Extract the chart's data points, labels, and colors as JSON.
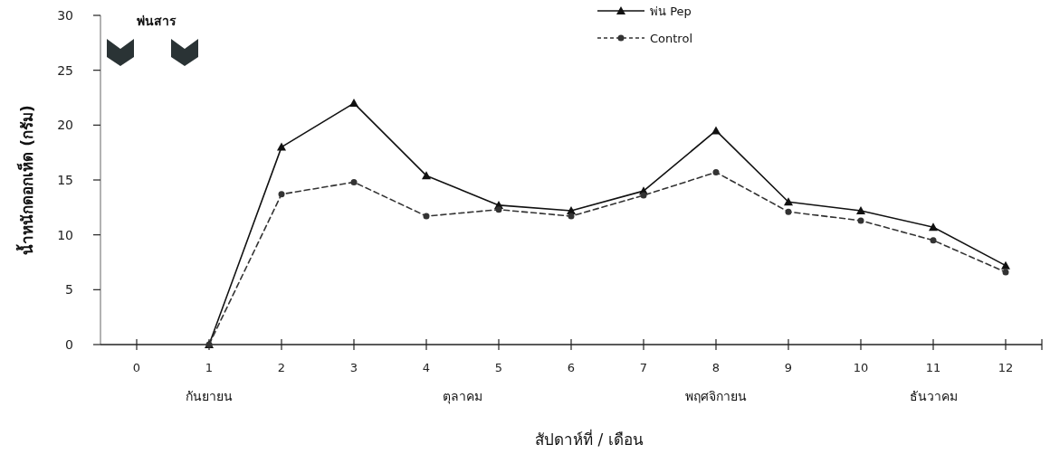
{
  "chart_data": {
    "type": "line",
    "xlabel": "สัปดาห์ที่ / เดือน",
    "ylabel": "น้ำหนักดอกเห็ด (กรัม)",
    "x": [
      1,
      2,
      3,
      4,
      5,
      6,
      7,
      8,
      9,
      10,
      11,
      12
    ],
    "xlim": [
      -0.5,
      12.5
    ],
    "xticks": [
      0,
      1,
      2,
      3,
      4,
      5,
      6,
      7,
      8,
      9,
      10,
      11,
      12
    ],
    "ylim": [
      0,
      30
    ],
    "yticks": [
      0,
      5,
      10,
      15,
      20,
      25,
      30
    ],
    "grid": false,
    "legend": "top",
    "series": [
      {
        "name": "พ่น Pep",
        "color": "#111111",
        "marker": "triangle",
        "line_style": "solid",
        "values": [
          0,
          18,
          22,
          15.4,
          12.7,
          12.2,
          14,
          19.5,
          13,
          12.2,
          10.7,
          7.2
        ]
      },
      {
        "name": "Control",
        "color": "#333333",
        "marker": "circle",
        "line_style": "dashed",
        "values": [
          0,
          13.7,
          14.8,
          11.7,
          12.3,
          11.7,
          13.6,
          15.7,
          12.1,
          11.3,
          9.5,
          6.6
        ]
      }
    ],
    "annotations": [
      "พ่นสาร",
      "กันยายน",
      "ตุลาคม",
      "พฤศจิกายน",
      "ธันวาคม"
    ]
  }
}
